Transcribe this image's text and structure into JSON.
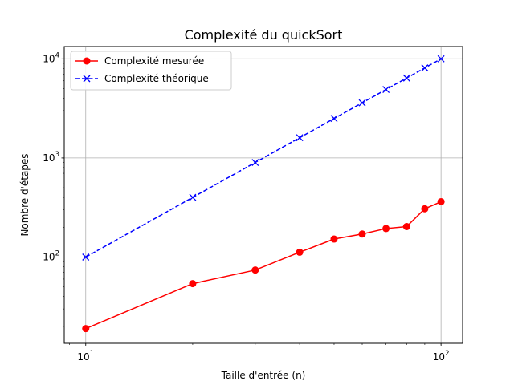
{
  "chart_data": {
    "type": "line",
    "title": "Complexité du quickSort",
    "xlabel": "Taille d'entrée (n)",
    "ylabel": "Nombre d'étapes",
    "x_scale": "log",
    "y_scale": "log",
    "xlim": [
      8.7,
      115
    ],
    "ylim": [
      13.5,
      13300
    ],
    "x_ticks": [
      {
        "value": 10,
        "base": "10",
        "exp": "1"
      },
      {
        "value": 100,
        "base": "10",
        "exp": "2"
      }
    ],
    "y_ticks": [
      {
        "value": 100,
        "base": "10",
        "exp": "2"
      },
      {
        "value": 1000,
        "base": "10",
        "exp": "3"
      },
      {
        "value": 10000,
        "base": "10",
        "exp": "4"
      }
    ],
    "grid": true,
    "legend_position": "top-left",
    "series": [
      {
        "name": "Complexité mesurée",
        "color": "#ff0000",
        "line_style": "solid",
        "marker": "circle",
        "x": [
          10,
          20,
          30,
          40,
          50,
          60,
          70,
          80,
          90,
          100
        ],
        "y": [
          19,
          54,
          74,
          112,
          152,
          171,
          194,
          203,
          307,
          362
        ]
      },
      {
        "name": "Complexité théorique",
        "color": "#0000ff",
        "line_style": "dashed",
        "marker": "x",
        "x": [
          10,
          20,
          30,
          40,
          50,
          60,
          70,
          80,
          90,
          100
        ],
        "y": [
          100,
          400,
          900,
          1600,
          2500,
          3600,
          4900,
          6400,
          8100,
          10000
        ]
      }
    ]
  }
}
